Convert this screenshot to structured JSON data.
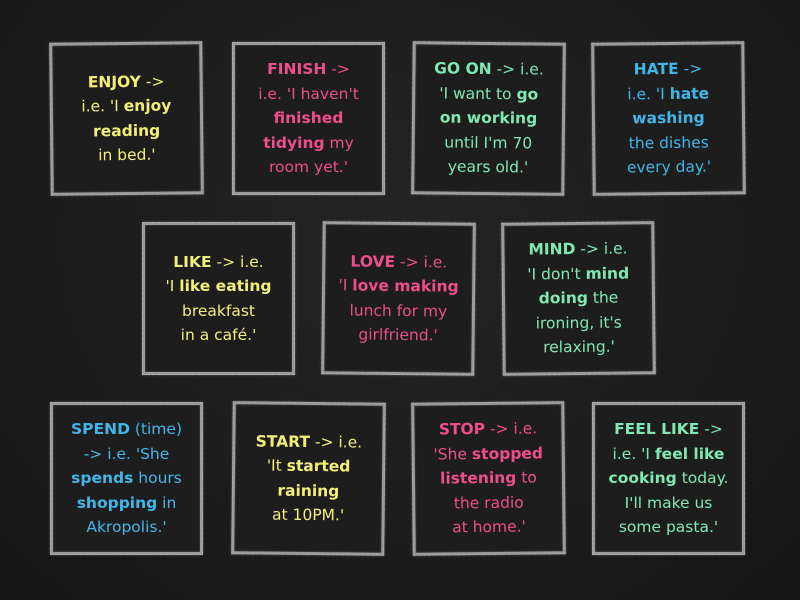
{
  "colors": {
    "yellow": "#f3f07a",
    "pink": "#ee4f8c",
    "green": "#80e8b2",
    "blue": "#42b6e8"
  },
  "cards": [
    {
      "word": "ENJOY",
      "color": "yellow",
      "lines": [
        [
          {
            "t": "ENJOY",
            "b": true
          },
          {
            "t": " ->"
          }
        ],
        [
          {
            "t": "i.e. 'I "
          },
          {
            "t": "enjoy",
            "b": true
          }
        ],
        [
          {
            "t": "reading",
            "b": true
          }
        ],
        [
          {
            "t": "in bed.'"
          }
        ]
      ]
    },
    {
      "word": "FINISH",
      "color": "pink",
      "lines": [
        [
          {
            "t": "FINISH",
            "b": true
          },
          {
            "t": " ->"
          }
        ],
        [
          {
            "t": "i.e. 'I haven't"
          }
        ],
        [
          {
            "t": "finished",
            "b": true
          }
        ],
        [
          {
            "t": "tidying",
            "b": true
          },
          {
            "t": " my"
          }
        ],
        [
          {
            "t": "room yet.'"
          }
        ]
      ]
    },
    {
      "word": "GO ON",
      "color": "green",
      "lines": [
        [
          {
            "t": "GO ON",
            "b": true
          },
          {
            "t": " -> i.e."
          }
        ],
        [
          {
            "t": "'I want to "
          },
          {
            "t": "go",
            "b": true
          }
        ],
        [
          {
            "t": "on working",
            "b": true
          }
        ],
        [
          {
            "t": "until I'm 70"
          }
        ],
        [
          {
            "t": "years old.'"
          }
        ]
      ]
    },
    {
      "word": "HATE",
      "color": "blue",
      "lines": [
        [
          {
            "t": "HATE",
            "b": true
          },
          {
            "t": " ->"
          }
        ],
        [
          {
            "t": "i.e. 'I "
          },
          {
            "t": "hate",
            "b": true
          }
        ],
        [
          {
            "t": "washing",
            "b": true
          }
        ],
        [
          {
            "t": "the dishes"
          }
        ],
        [
          {
            "t": "every day.'"
          }
        ]
      ]
    },
    {
      "word": "LIKE",
      "color": "yellow",
      "lines": [
        [
          {
            "t": "LIKE",
            "b": true
          },
          {
            "t": " -> i.e."
          }
        ],
        [
          {
            "t": "'I "
          },
          {
            "t": "like eating",
            "b": true
          }
        ],
        [
          {
            "t": "breakfast"
          }
        ],
        [
          {
            "t": "in a café.'"
          }
        ]
      ]
    },
    {
      "word": "LOVE",
      "color": "pink",
      "lines": [
        [
          {
            "t": "LOVE",
            "b": true
          },
          {
            "t": " -> i.e."
          }
        ],
        [
          {
            "t": "'I "
          },
          {
            "t": "love making",
            "b": true
          }
        ],
        [
          {
            "t": "lunch for my"
          }
        ],
        [
          {
            "t": "girlfriend.'"
          }
        ]
      ]
    },
    {
      "word": "MIND",
      "color": "green",
      "lines": [
        [
          {
            "t": "MIND",
            "b": true
          },
          {
            "t": " -> i.e."
          }
        ],
        [
          {
            "t": "'I don't "
          },
          {
            "t": "mind",
            "b": true
          }
        ],
        [
          {
            "t": "doing",
            "b": true
          },
          {
            "t": " the"
          }
        ],
        [
          {
            "t": "ironing, it's"
          }
        ],
        [
          {
            "t": "relaxing.'"
          }
        ]
      ]
    },
    {
      "word": "SPEND",
      "color": "blue",
      "lines": [
        [
          {
            "t": "SPEND",
            "b": true
          },
          {
            "t": " (time)"
          }
        ],
        [
          {
            "t": "-> i.e. 'She"
          }
        ],
        [
          {
            "t": "spends",
            "b": true
          },
          {
            "t": " hours"
          }
        ],
        [
          {
            "t": "shopping",
            "b": true
          },
          {
            "t": " in"
          }
        ],
        [
          {
            "t": "Akropolis.'"
          }
        ]
      ]
    },
    {
      "word": "START",
      "color": "yellow",
      "lines": [
        [
          {
            "t": "START",
            "b": true
          },
          {
            "t": " -> i.e."
          }
        ],
        [
          {
            "t": "'It "
          },
          {
            "t": "started",
            "b": true
          }
        ],
        [
          {
            "t": "raining",
            "b": true
          }
        ],
        [
          {
            "t": "at 10PM.'"
          }
        ]
      ]
    },
    {
      "word": "STOP",
      "color": "pink",
      "lines": [
        [
          {
            "t": "STOP",
            "b": true
          },
          {
            "t": " -> i.e."
          }
        ],
        [
          {
            "t": "'She "
          },
          {
            "t": "stopped",
            "b": true
          }
        ],
        [
          {
            "t": "listening",
            "b": true
          },
          {
            "t": " to"
          }
        ],
        [
          {
            "t": "the radio"
          }
        ],
        [
          {
            "t": "at home.'"
          }
        ]
      ]
    },
    {
      "word": "FEEL LIKE",
      "color": "green",
      "lines": [
        [
          {
            "t": "FEEL LIKE",
            "b": true
          },
          {
            "t": " ->"
          }
        ],
        [
          {
            "t": "i.e. 'I "
          },
          {
            "t": "feel like",
            "b": true
          }
        ],
        [
          {
            "t": "cooking",
            "b": true
          },
          {
            "t": " today."
          }
        ],
        [
          {
            "t": "I'll make us"
          }
        ],
        [
          {
            "t": "some pasta.'"
          }
        ]
      ]
    }
  ]
}
